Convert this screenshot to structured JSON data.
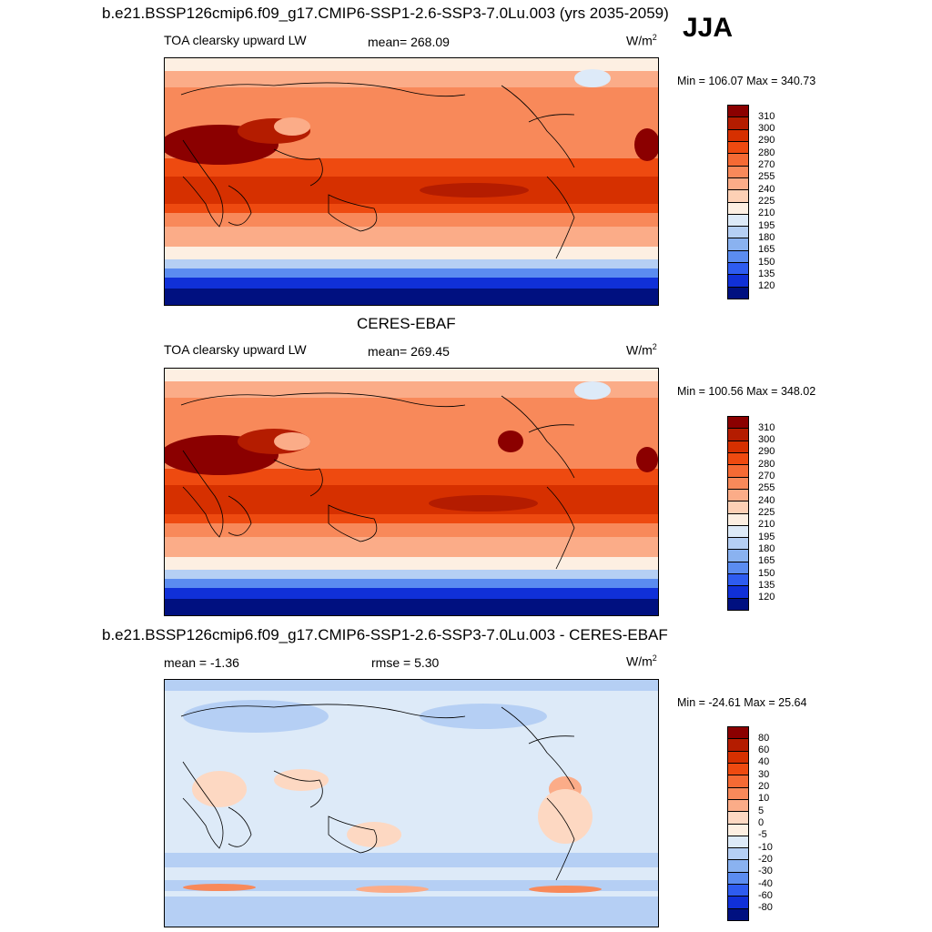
{
  "figure": {
    "season": "JJA",
    "top_title": "b.e21.BSSP126cmip6.f09_g17.CMIP6-SSP1-2.6-SSP3-7.0Lu.003 (yrs 2035-2059)",
    "mid_title": "CERES-EBAF",
    "diff_title": "b.e21.BSSP126cmip6.f09_g17.CMIP6-SSP1-2.6-SSP3-7.0Lu.003 - CERES-EBAF"
  },
  "panels": [
    {
      "id": "model",
      "variable": "TOA clearsky upward LW",
      "stat": "mean= 268.09",
      "units": "W/m",
      "units_exp": "2",
      "range": "Min = 106.07 Max = 340.73"
    },
    {
      "id": "obs",
      "variable": "TOA clearsky upward LW",
      "stat": "mean= 269.45",
      "units": "W/m",
      "units_exp": "2",
      "range": "Min = 100.56 Max = 348.02"
    },
    {
      "id": "diff",
      "stat": "mean =  -1.36",
      "stat2": "rmse =   5.30",
      "units": "W/m",
      "units_exp": "2",
      "range": "Min = -24.61 Max =  25.64"
    }
  ],
  "colorbars": {
    "abs": {
      "labels": [
        "310",
        "300",
        "290",
        "280",
        "270",
        "255",
        "240",
        "225",
        "210",
        "195",
        "180",
        "165",
        "150",
        "135",
        "120"
      ],
      "colors": [
        "#8b0000",
        "#b41c00",
        "#d63000",
        "#ee4a10",
        "#f56a34",
        "#f8895a",
        "#fbac88",
        "#fdd0b5",
        "#fdefe2",
        "#ddeaf8",
        "#b5cff4",
        "#8ab2f0",
        "#5b8cf0",
        "#2e5cf0",
        "#1030d8",
        "#001080"
      ]
    },
    "diff": {
      "labels": [
        "80",
        "60",
        "40",
        "30",
        "20",
        "10",
        "5",
        "0",
        "-5",
        "-10",
        "-20",
        "-30",
        "-40",
        "-60",
        "-80"
      ],
      "colors": [
        "#8b0000",
        "#b41c00",
        "#d63000",
        "#ee4a10",
        "#f56a34",
        "#f8895a",
        "#fbac88",
        "#fdd8c2",
        "#fdefe2",
        "#ddeaf8",
        "#b5cff4",
        "#8ab2f0",
        "#5b8cf0",
        "#2e5cf0",
        "#1030d8",
        "#001080"
      ]
    }
  }
}
